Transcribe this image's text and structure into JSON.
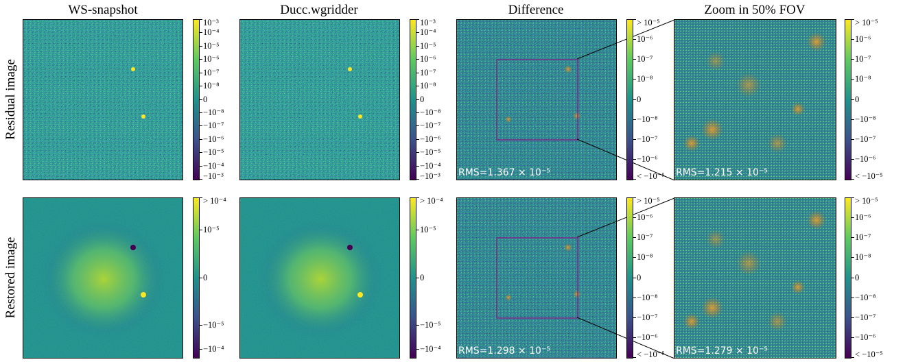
{
  "columns": [
    "WS-snapshot",
    "Ducc.wgridder",
    "Difference",
    "Zoom in 50% FOV"
  ],
  "rows": [
    "Residual image",
    "Restored image"
  ],
  "colorbars": {
    "residual_ws": [
      "10⁻³",
      "10⁻⁴",
      "10⁻⁵",
      "10⁻⁶",
      "10⁻⁷",
      "10⁻⁸",
      "0",
      "−10⁻⁸",
      "−10⁻⁷",
      "−10⁻⁶",
      "−10⁻⁵",
      "−10⁻⁴",
      "−10⁻³"
    ],
    "residual_diff": [
      "> 10⁻⁵",
      "10⁻⁶",
      "10⁻⁷",
      "10⁻⁸",
      "0",
      "−10⁻⁸",
      "−10⁻⁷",
      "−10⁻⁶",
      "< −10⁻⁵"
    ],
    "restored_ws": [
      "> 10⁻⁴",
      "10⁻⁵",
      "0",
      "−10⁻⁵",
      "−10⁻⁴"
    ]
  },
  "rms": {
    "residual_diff": "RMS=1.367 × 10⁻⁵",
    "residual_zoom": "RMS=1.215 × 10⁻⁵",
    "restored_diff": "RMS=1.298 × 10⁻⁵",
    "restored_zoom": "RMS=1.279 × 10⁻⁵"
  },
  "colors": {
    "viridis_dark": "#440154",
    "viridis_blue": "#31688e",
    "viridis_teal": "#21918c",
    "viridis_green": "#35b779",
    "viridis_yellow": "#fde725",
    "zoom_box": "#7a2b8a",
    "hot_spot": "#c8781e"
  }
}
